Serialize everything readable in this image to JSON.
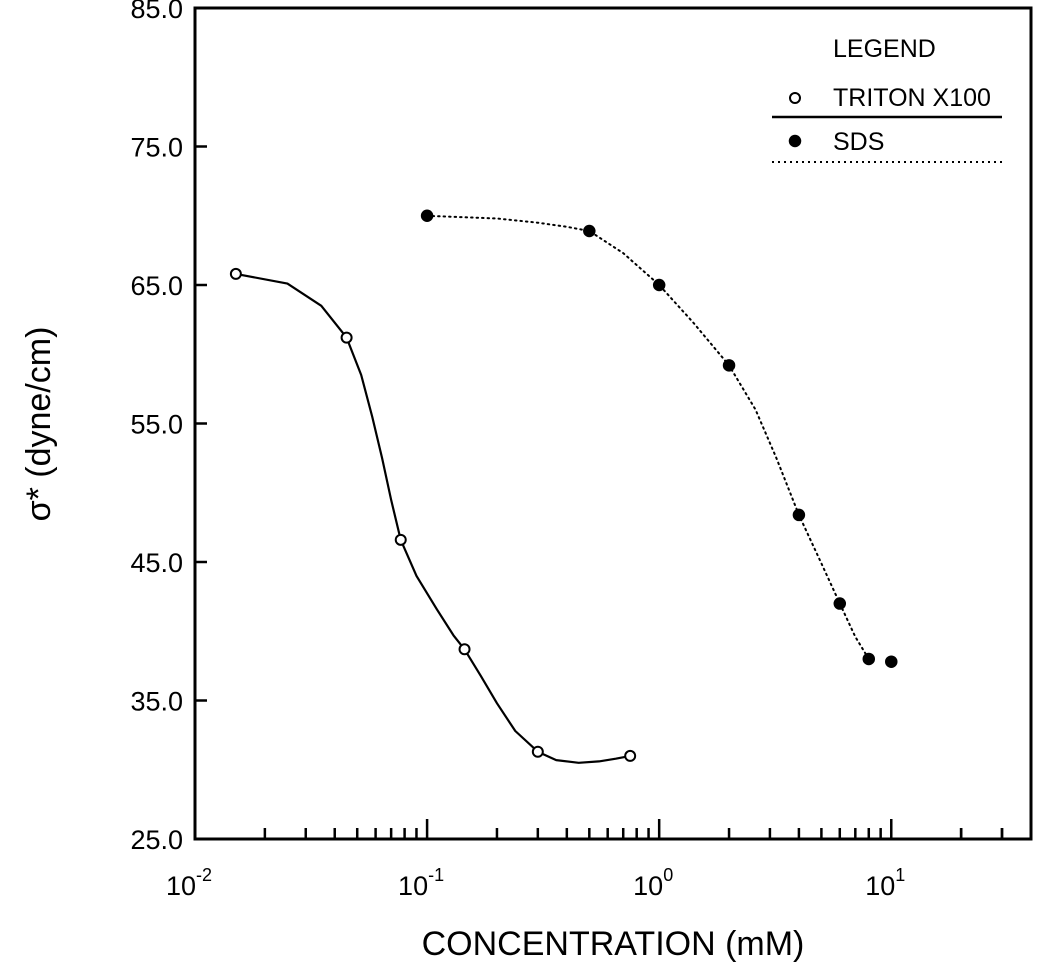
{
  "chart_data": {
    "type": "scatter",
    "title": "",
    "xlabel": "CONCENTRATION (mM)",
    "ylabel": "σ* (dyne/cm)",
    "x_scale": "log",
    "xlim": [
      0.01,
      40
    ],
    "ylim": [
      25.0,
      85.0
    ],
    "y_ticks": [
      "25.0",
      "35.0",
      "45.0",
      "55.0",
      "65.0",
      "75.0",
      "85.0"
    ],
    "x_ticks": [
      {
        "base": "10",
        "exp": "-2"
      },
      {
        "base": "10",
        "exp": "-1"
      },
      {
        "base": "10",
        "exp": "0"
      },
      {
        "base": "10",
        "exp": "1"
      }
    ],
    "grid": false,
    "legend": {
      "title": "LEGEND",
      "position": "top-right",
      "entries": [
        "TRITON X100",
        "SDS"
      ]
    },
    "series": [
      {
        "name": "TRITON X100",
        "marker": "open-circle",
        "line": "solid",
        "x": [
          0.015,
          0.045,
          0.077,
          0.145,
          0.3,
          0.75
        ],
        "y": [
          65.8,
          61.2,
          46.6,
          38.7,
          31.3,
          31.0
        ],
        "curve": {
          "x": [
            0.015,
            0.025,
            0.035,
            0.045,
            0.052,
            0.058,
            0.064,
            0.07,
            0.077,
            0.09,
            0.11,
            0.13,
            0.145,
            0.17,
            0.2,
            0.24,
            0.3,
            0.36,
            0.45,
            0.55,
            0.65,
            0.75
          ],
          "y": [
            65.8,
            65.1,
            63.5,
            61.2,
            58.5,
            55.5,
            52.5,
            49.5,
            46.6,
            44.0,
            41.6,
            39.7,
            38.7,
            36.8,
            34.8,
            32.8,
            31.3,
            30.7,
            30.5,
            30.6,
            30.8,
            31.0
          ]
        }
      },
      {
        "name": "SDS",
        "marker": "filled-circle",
        "line": "dotted",
        "x": [
          0.1,
          0.5,
          1.0,
          2.0,
          4.0,
          6.0,
          8.0,
          10.0
        ],
        "y": [
          70.0,
          68.9,
          65.0,
          59.2,
          48.4,
          42.0,
          38.0,
          37.8
        ],
        "curve": {
          "x": [
            0.1,
            0.2,
            0.3,
            0.4,
            0.5,
            0.7,
            1.0,
            1.4,
            2.0,
            2.6,
            3.2,
            4.0,
            5.0,
            6.0,
            7.0,
            8.0
          ],
          "y": [
            70.0,
            69.8,
            69.5,
            69.2,
            68.9,
            67.3,
            65.0,
            62.3,
            59.2,
            56.0,
            52.5,
            48.4,
            44.9,
            42.0,
            39.6,
            38.0
          ]
        }
      }
    ]
  }
}
